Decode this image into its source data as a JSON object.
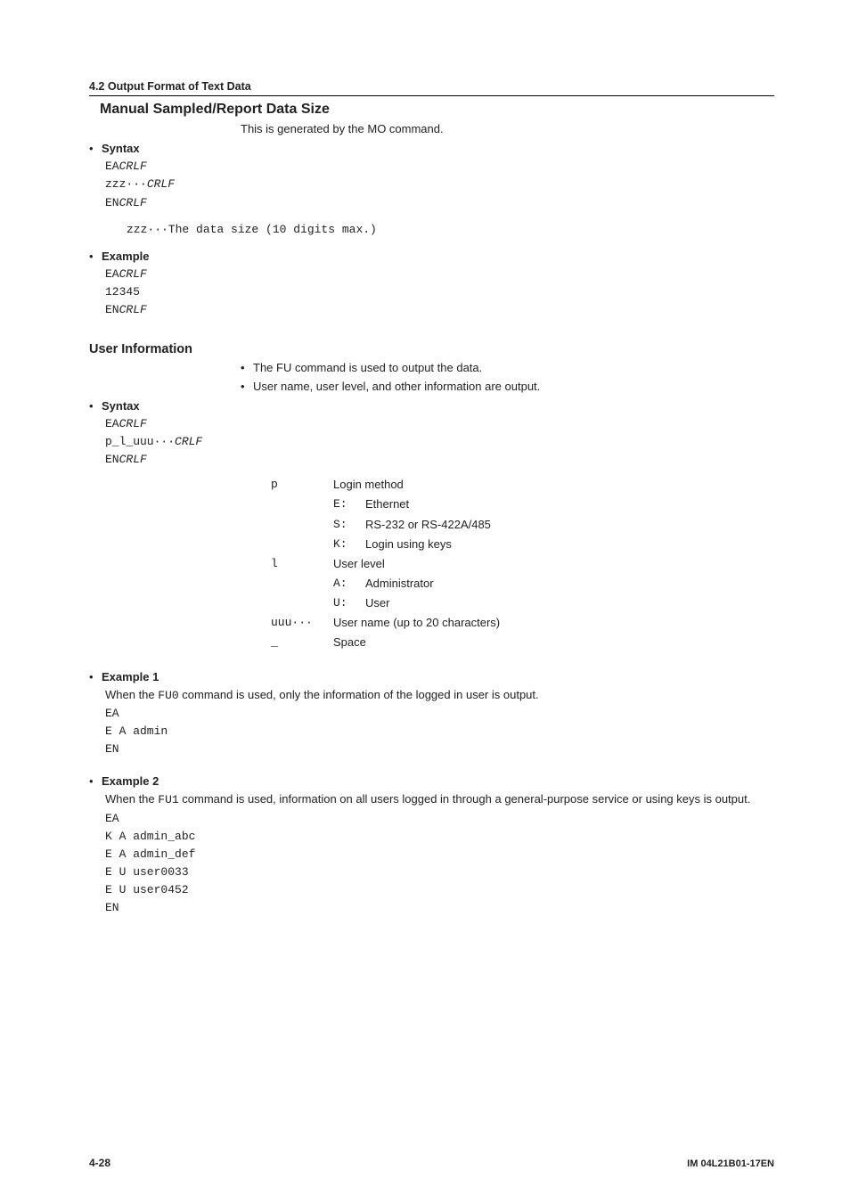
{
  "header": {
    "section": "4.2  Output Format of Text Data"
  },
  "sec1": {
    "title": "Manual Sampled/Report Data Size",
    "intro": "This is generated by the MO command.",
    "syntax": {
      "label": "Syntax",
      "l1a": "EA",
      "l1b": "CRLF",
      "l2a": "zzz···",
      "l2b": "CRLF",
      "l3a": "EN",
      "l3b": "CRLF",
      "def": "zzz···The data size (10 digits max.)"
    },
    "example": {
      "label": "Example",
      "l1a": "EA",
      "l1b": "CRLF",
      "l2": "12345",
      "l3a": "EN",
      "l3b": "CRLF"
    }
  },
  "sec2": {
    "title": "User Information",
    "b1": "The FU command is used to output the data.",
    "b2": "User name, user level, and other information are output.",
    "syntax": {
      "label": "Syntax",
      "l1a": "EA",
      "l1b": "CRLF",
      "l2a": "p_l_uuu···",
      "l2b": "CRLF",
      "l3a": "EN",
      "l3b": "CRLF"
    },
    "defs": {
      "p": "p",
      "p_label": "Login method",
      "e": "E:",
      "e_label": "Ethernet",
      "s": "S:",
      "s_label": "RS-232 or RS-422A/485",
      "k": "K:",
      "k_label": "Login using keys",
      "l": "l",
      "l_label": "User level",
      "a": "A:",
      "a_label": "Administrator",
      "u": "U:",
      "u_label": "User",
      "uuu": "uuu···",
      "uuu_label": "User name (up to 20 characters)",
      "sp": "_",
      "sp_label": "Space"
    },
    "ex1": {
      "label": "Example 1",
      "desc_pre": "When the ",
      "desc_cmd": "FU0",
      "desc_post": " command is used, only the information of the logged in user is output.",
      "l1": "EA",
      "l2": "E A admin",
      "l3": "EN"
    },
    "ex2": {
      "label": "Example 2",
      "desc_pre": "When the ",
      "desc_cmd": "FU1",
      "desc_post": " command is used, information on all users logged in through a general-purpose service or using keys is output.",
      "l1": "EA",
      "l2": "K A admin_abc",
      "l3": "E A admin_def",
      "l4": "E U user0033",
      "l5": "E U user0452",
      "l6": "EN"
    }
  },
  "footer": {
    "left": "4-28",
    "right": "IM 04L21B01-17EN"
  },
  "glyphs": {
    "bullet_solid": "•",
    "bullet_small": "•"
  }
}
